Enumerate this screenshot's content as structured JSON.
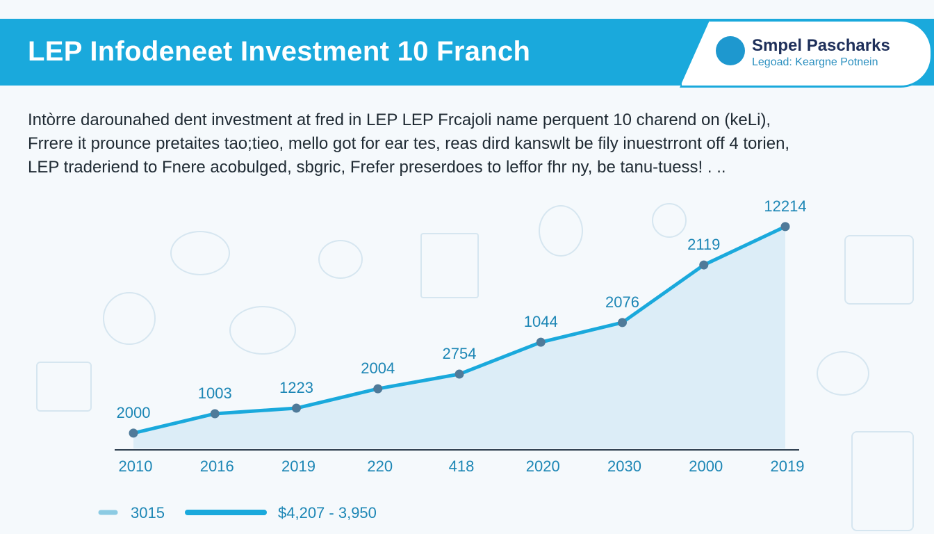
{
  "header": {
    "title": "LEP Infodeneet Investment 10 Franch",
    "logo_name": "Smpel Pascharks",
    "logo_sub": "Legoad: Keargne Potnein"
  },
  "intro": {
    "lines": [
      "Intòrre darounahed dent investment at fred in LEP LEP Frcajoli name perquent 10 charend on (keLi),",
      "Frrere it prounce pretaites tao;tieo, mello got for ear tes, reas dird kanswlt be fily inuestrront off 4 torien,",
      "LEP traderiend to Fnere acobulged, sbgric, Frefer preserdoes to leffor fhr ny, be tanu-tuess! .  .."
    ]
  },
  "chart_data": {
    "type": "area",
    "title": "",
    "xlabel": "",
    "ylabel": "",
    "categories": [
      "2010",
      "2016",
      "2019",
      "220",
      "418",
      "2020",
      "2030",
      "2000",
      "2019"
    ],
    "values": [
      6.4,
      14.5,
      16.8,
      24.9,
      31.0,
      44.3,
      52.5,
      76.5,
      92.5
    ],
    "data_labels": [
      "2000",
      "1003",
      "1223",
      "2004",
      "2754",
      "1044",
      "2076",
      "2119",
      "12214"
    ],
    "ylim": [
      0,
      100
    ],
    "grid": false,
    "line_color": "#1aa9dc",
    "fill_color": "#d6eaf5",
    "marker_color": "#4f7a99",
    "label_color": "#1c86b5",
    "legend": {
      "placement": "bottom-left",
      "items": [
        {
          "label": "3015",
          "color": "#8ccbe3"
        },
        {
          "label": "$4,207  - 3,950",
          "color": "#1aa9dc"
        }
      ]
    }
  }
}
